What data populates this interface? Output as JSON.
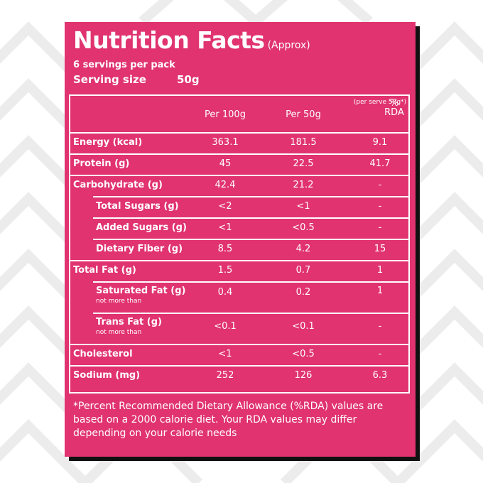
{
  "card": {
    "title": "Nutrition Facts",
    "title_note": "(Approx)",
    "servings_per_pack": "6 servings per pack",
    "serving_size_label": "Serving size",
    "serving_size_value": "50g"
  },
  "columns": {
    "per100": "Per 100g",
    "per50": "Per 50g",
    "rda": "% RDA",
    "rda_note": "(per serve 50g*)"
  },
  "rows": [
    {
      "label": "Energy (kcal)",
      "per100": "363.1",
      "per50": "181.5",
      "rda": "9.1"
    },
    {
      "label": "Protein (g)",
      "per100": "45",
      "per50": "22.5",
      "rda": "41.7"
    },
    {
      "label": "Carbohydrate (g)",
      "per100": "42.4",
      "per50": "21.2",
      "rda": "-"
    },
    {
      "label": "Total Sugars (g)",
      "per100": "<2",
      "per50": "<1",
      "rda": "-"
    },
    {
      "label": "Added Sugars (g)",
      "per100": "<1",
      "per50": "<0.5",
      "rda": "-"
    },
    {
      "label": "Dietary Fiber (g)",
      "per100": "8.5",
      "per50": "4.2",
      "rda": "15"
    },
    {
      "label": "Total Fat (g)",
      "per100": "1.5",
      "per50": "0.7",
      "rda": "1"
    },
    {
      "label": "Saturated Fat (g)",
      "note": "not more than",
      "per100": "0.4",
      "per50": "0.2",
      "rda": "1"
    },
    {
      "label": "Trans Fat (g)",
      "note": "not more than",
      "per100": "<0.1",
      "per50": "<0.1",
      "rda": "-"
    },
    {
      "label": "Cholesterol",
      "per100": "<1",
      "per50": "<0.5",
      "rda": "-"
    },
    {
      "label": "Sodium (mg)",
      "per100": "252",
      "per50": "126",
      "rda": "6.3"
    }
  ],
  "footnote": "*Percent Recommended Dietary Allowance (%RDA) values are based on a 2000 calorie diet. Your RDA values may differ depending on your calorie needs",
  "colors": {
    "card_background": "#e0336f",
    "text": "#ffffff",
    "shadow": "#111111",
    "pattern_stroke": "#ececec"
  }
}
